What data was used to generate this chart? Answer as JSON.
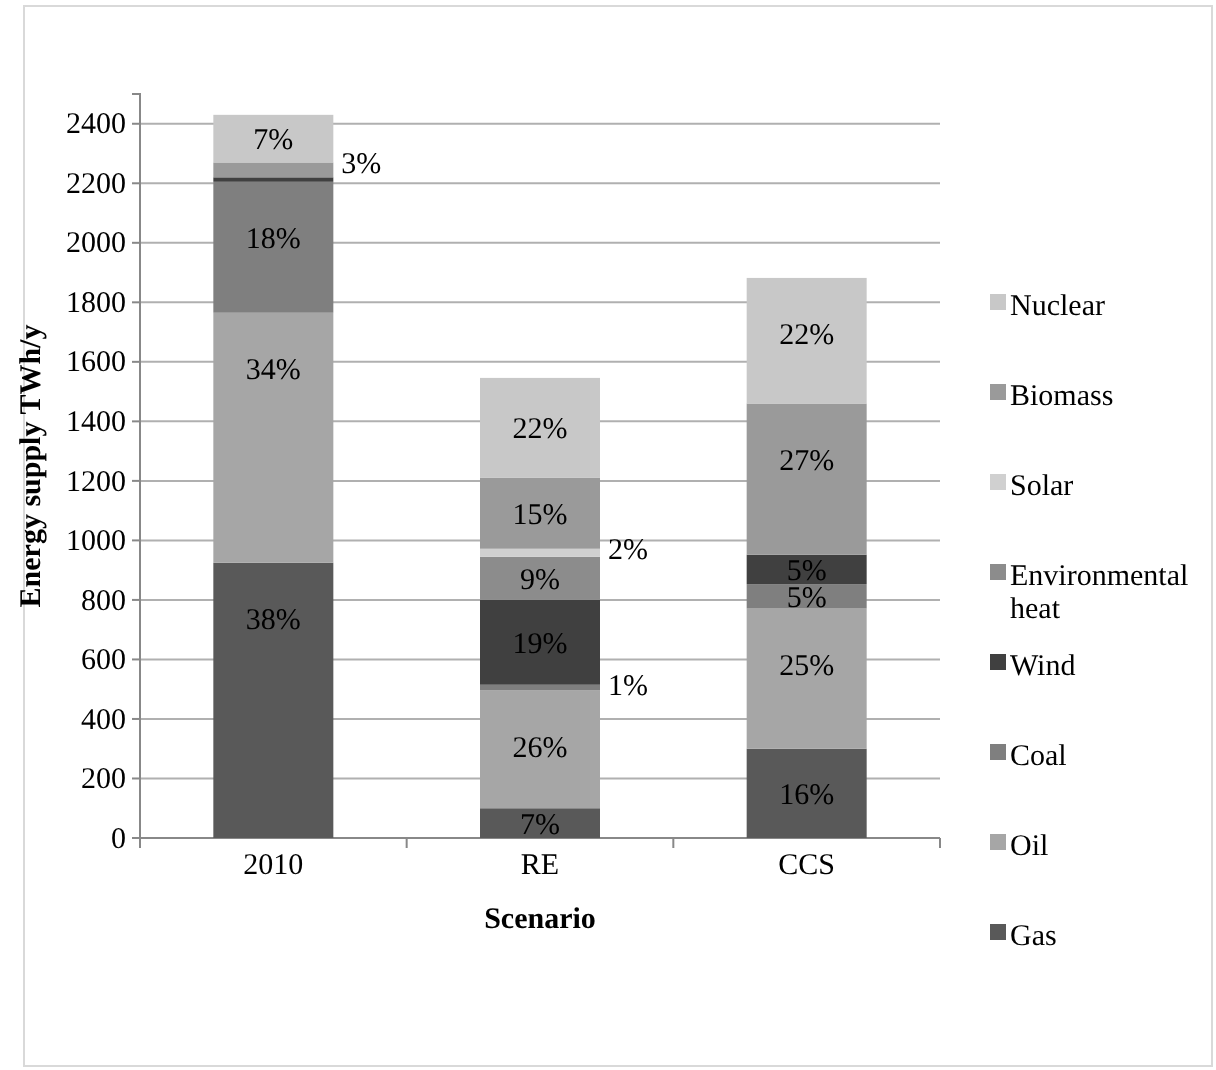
{
  "chart_data": {
    "type": "bar",
    "stacked": true,
    "xlabel": "Scenario",
    "ylabel": "Energy supply TWh/y",
    "categories": [
      "2010",
      "RE",
      "CCS"
    ],
    "ylim": [
      0,
      2500
    ],
    "yticks": [
      0,
      200,
      400,
      600,
      800,
      1000,
      1200,
      1400,
      1600,
      1800,
      2000,
      2200,
      2400
    ],
    "grid": "y",
    "legend": "right",
    "series": [
      {
        "name": "Gas",
        "color": "#595959",
        "values": [
          925,
          100,
          300
        ]
      },
      {
        "name": "Oil",
        "color": "#a6a6a6",
        "values": [
          840,
          397,
          471
        ]
      },
      {
        "name": "Coal",
        "color": "#7f7f7f",
        "values": [
          440,
          18,
          82
        ]
      },
      {
        "name": "Wind",
        "color": "#404040",
        "values": [
          15,
          285,
          99
        ]
      },
      {
        "name": "Environmental heat",
        "color": "#8c8c8c",
        "values": [
          0,
          145,
          0
        ]
      },
      {
        "name": "Solar",
        "color": "#d0d0d0",
        "values": [
          0,
          27,
          0
        ]
      },
      {
        "name": "Biomass",
        "color": "#9a9a9a",
        "values": [
          50,
          238,
          508
        ]
      },
      {
        "name": "Nuclear",
        "color": "#c8c8c8",
        "values": [
          160,
          336,
          422
        ]
      }
    ],
    "annotations": [
      {
        "text": "38%",
        "x": "2010",
        "y": 925
      },
      {
        "text": "34%",
        "x": "2010",
        "y": 1765
      },
      {
        "text": "18%",
        "x": "2010",
        "y": 2205
      },
      {
        "text": "3%",
        "x": "2010",
        "y": 2270
      },
      {
        "text": "7%",
        "x": "2010",
        "y": 2430
      },
      {
        "text": "7%",
        "x": "RE",
        "y": 100
      },
      {
        "text": "26%",
        "x": "RE",
        "y": 497
      },
      {
        "text": "1%",
        "x": "RE",
        "y": 515
      },
      {
        "text": "19%",
        "x": "RE",
        "y": 800
      },
      {
        "text": "9%",
        "x": "RE",
        "y": 945
      },
      {
        "text": "2%",
        "x": "RE",
        "y": 972
      },
      {
        "text": "15%",
        "x": "RE",
        "y": 1210
      },
      {
        "text": "22%",
        "x": "RE",
        "y": 1546
      },
      {
        "text": "16%",
        "x": "CCS",
        "y": 300
      },
      {
        "text": "25%",
        "x": "CCS",
        "y": 771
      },
      {
        "text": "5%",
        "x": "CCS",
        "y": 853
      },
      {
        "text": "5%",
        "x": "CCS",
        "y": 952
      },
      {
        "text": "27%",
        "x": "CCS",
        "y": 1460
      },
      {
        "text": "22%",
        "x": "CCS",
        "y": 1882
      }
    ]
  }
}
